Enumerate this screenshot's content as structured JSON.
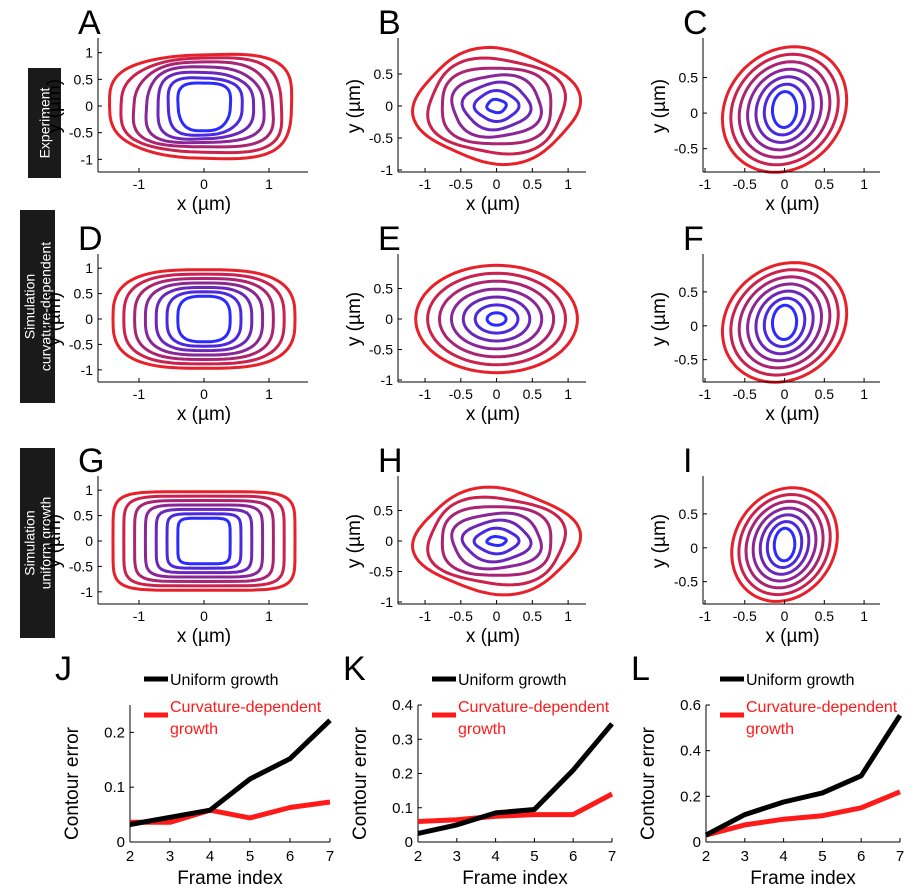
{
  "colors": {
    "outer_contour": "#e8202a",
    "inner_contour": "#2b2bff",
    "uniform_growth": "#000000",
    "curvature_growth": "#ff1a1a"
  },
  "row_labels": [
    "Experiment",
    "Simulation curvature-dependent",
    "Simulation uniform growth"
  ],
  "panels": [
    {
      "letter": "A",
      "xticks": [
        "-1",
        "0",
        "1"
      ],
      "yticks": [
        "1",
        "0.5",
        "0",
        "-0.5",
        "-1"
      ]
    },
    {
      "letter": "B",
      "xticks": [
        "-1",
        "-0.5",
        "0",
        "0.5",
        "1"
      ],
      "yticks": [
        "0.5",
        "0",
        "-0.5",
        "-1"
      ]
    },
    {
      "letter": "C",
      "xticks": [
        "-1",
        "-0.5",
        "0",
        "0.5",
        "1"
      ],
      "yticks": [
        "0.5",
        "0",
        "-0.5"
      ]
    },
    {
      "letter": "D",
      "xticks": [
        "-1",
        "0",
        "1"
      ],
      "yticks": [
        "1",
        "0.5",
        "0",
        "-0.5",
        "-1"
      ]
    },
    {
      "letter": "E",
      "xticks": [
        "-1",
        "-0.5",
        "0",
        "0.5",
        "1"
      ],
      "yticks": [
        "0.5",
        "0",
        "-0.5",
        "-1"
      ]
    },
    {
      "letter": "F",
      "xticks": [
        "-1",
        "-0.5",
        "0",
        "0.5",
        "1"
      ],
      "yticks": [
        "0.5",
        "0",
        "-0.5"
      ]
    },
    {
      "letter": "G",
      "xticks": [
        "-1",
        "0",
        "1"
      ],
      "yticks": [
        "1",
        "0.5",
        "0",
        "-0.5",
        "-1"
      ]
    },
    {
      "letter": "H",
      "xticks": [
        "-1",
        "-0.5",
        "0",
        "0.5",
        "1"
      ],
      "yticks": [
        "0.5",
        "0",
        "-0.5",
        "-1"
      ]
    },
    {
      "letter": "I",
      "xticks": [
        "-1",
        "-0.5",
        "0",
        "0.5",
        "1"
      ],
      "yticks": [
        "0.5",
        "0",
        "-0.5"
      ]
    }
  ],
  "contour_axes": {
    "xlabel": "x (µm)",
    "ylabel": "y (µm)"
  },
  "chart_data": [
    {
      "type": "line",
      "panel": "J",
      "xlabel": "Frame index",
      "ylabel": "Contour error",
      "x": [
        2,
        3,
        4,
        5,
        6,
        7
      ],
      "xticks": [
        "2",
        "3",
        "4",
        "5",
        "6",
        "7"
      ],
      "yticks": [
        "0",
        "0.1",
        "0.2"
      ],
      "ylim": [
        0,
        0.25
      ],
      "series": [
        {
          "name": "Uniform growth",
          "values": [
            0.032,
            0.045,
            0.058,
            0.115,
            0.152,
            0.222
          ]
        },
        {
          "name": "Curvature-dependent growth",
          "values": [
            0.036,
            0.036,
            0.058,
            0.044,
            0.063,
            0.073
          ]
        }
      ],
      "legend": {
        "uniform": "Uniform growth",
        "curv1": "Curvature-dependent",
        "curv2": "growth"
      }
    },
    {
      "type": "line",
      "panel": "K",
      "xlabel": "Frame index",
      "ylabel": "Contour error",
      "x": [
        2,
        3,
        4,
        5,
        6,
        7
      ],
      "xticks": [
        "2",
        "3",
        "4",
        "5",
        "6",
        "7"
      ],
      "yticks": [
        "0",
        "0.1",
        "0.2",
        "0.3",
        "0.4"
      ],
      "ylim": [
        0,
        0.4
      ],
      "series": [
        {
          "name": "Uniform growth",
          "values": [
            0.025,
            0.05,
            0.085,
            0.095,
            0.21,
            0.345
          ]
        },
        {
          "name": "Curvature-dependent growth",
          "values": [
            0.06,
            0.065,
            0.075,
            0.08,
            0.08,
            0.14
          ]
        }
      ],
      "legend": {
        "uniform": "Uniform growth",
        "curv1": "Curvature-dependent",
        "curv2": "growth"
      }
    },
    {
      "type": "line",
      "panel": "L",
      "xlabel": "Frame index",
      "ylabel": "Contour error",
      "x": [
        2,
        3,
        4,
        5,
        6,
        7
      ],
      "xticks": [
        "2",
        "3",
        "4",
        "5",
        "6",
        "7"
      ],
      "yticks": [
        "0",
        "0.2",
        "0.4",
        "0.6"
      ],
      "ylim": [
        0,
        0.6
      ],
      "series": [
        {
          "name": "Uniform growth",
          "values": [
            0.03,
            0.12,
            0.175,
            0.215,
            0.29,
            0.555
          ]
        },
        {
          "name": "Curvature-dependent growth",
          "values": [
            0.03,
            0.075,
            0.1,
            0.115,
            0.15,
            0.22
          ]
        }
      ],
      "legend": {
        "uniform": "Uniform growth",
        "curv1": "Curvature-dependent",
        "curv2": "growth"
      }
    }
  ]
}
